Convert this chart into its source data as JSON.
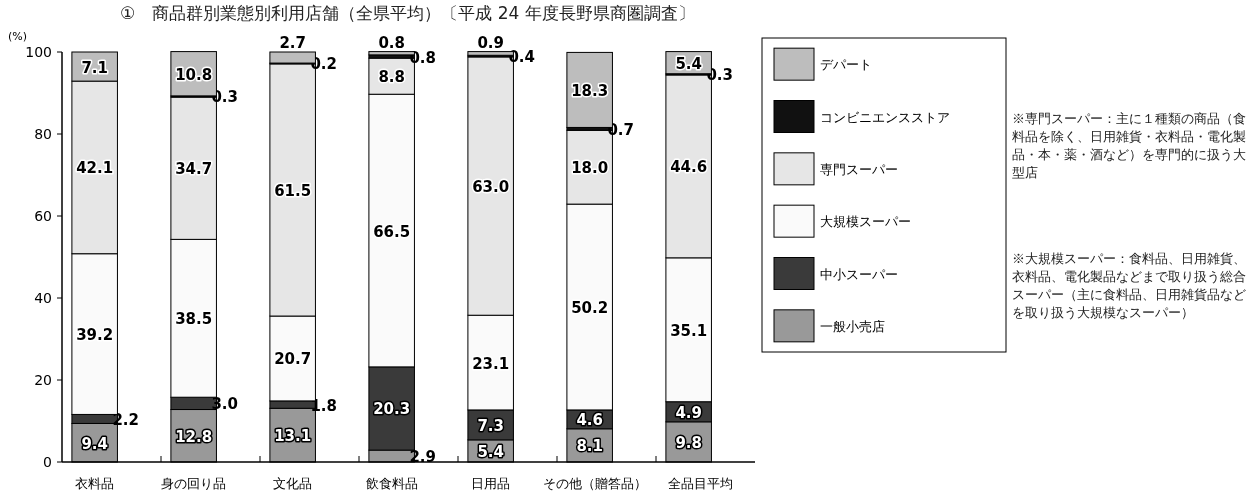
{
  "chart_data": {
    "type": "bar",
    "stacked": true,
    "title": "①　商品群別業態別利用店舗（全県平均）〔平成 24 年度長野県商圏調査〕",
    "ylabel": "(%)",
    "categories": [
      "衣料品",
      "身の回り品",
      "文化品",
      "飲食料品",
      "日用品",
      "その他（贈答品）",
      "全品目平均"
    ],
    "ylim": [
      0,
      100
    ],
    "yticks": [
      0,
      20,
      40,
      60,
      80,
      100
    ],
    "legend": "right",
    "grid": false,
    "series": [
      {
        "name": "一般小売店",
        "color": "#999999",
        "values": [
          9.4,
          12.8,
          13.1,
          2.9,
          5.4,
          8.1,
          9.8
        ],
        "value_labels": [
          "9.4",
          "12.8",
          "13.1",
          "2.9",
          "5.4",
          "8.1",
          "9.8"
        ]
      },
      {
        "name": "中小スーパー",
        "color": "#3a3a3a",
        "values": [
          2.2,
          3.0,
          1.8,
          20.3,
          7.3,
          4.6,
          4.9
        ],
        "value_labels": [
          "2.2",
          "3.0",
          "1.8",
          "20.3",
          "7.3",
          "4.6",
          "4.9"
        ]
      },
      {
        "name": "大規模スーパー",
        "color": "#fafafa",
        "values": [
          39.2,
          38.5,
          20.7,
          66.5,
          23.1,
          50.2,
          35.1
        ],
        "value_labels": [
          "39.2",
          "38.5",
          "20.7",
          "66.5",
          "23.1",
          "50.2",
          "35.1"
        ]
      },
      {
        "name": "専門スーパー",
        "color": "#e6e6e6",
        "values": [
          42.1,
          34.7,
          61.5,
          8.8,
          63.0,
          18.0,
          44.6
        ],
        "value_labels": [
          "42.1",
          "34.7",
          "61.5",
          "8.8",
          "63.0",
          "18.0",
          "44.6"
        ]
      },
      {
        "name": "コンビニエンスストア",
        "color": "#111111",
        "values": [
          0,
          0.3,
          0.2,
          0.8,
          0.4,
          0.7,
          0.3
        ],
        "value_labels": [
          null,
          "0.3",
          "0.2",
          "0.8",
          "0.4",
          "0.7",
          "0.3"
        ]
      },
      {
        "name": "デパート",
        "color": "#bdbdbd",
        "values": [
          7.1,
          10.8,
          2.7,
          0.8,
          0.9,
          18.3,
          5.4
        ],
        "value_labels": [
          "7.1",
          "10.8",
          "2.7",
          "0.8",
          "0.9",
          "18.3",
          "5.4"
        ]
      }
    ],
    "annotations": [
      "※専門スーパー：主に１種類の商品（食料品を除く、日用雑貨・衣料品・電化製品・本・薬・酒など）を専門的に扱う大型店",
      "※大規模スーパー：食料品、日用雑貨、衣料品、電化製品などまで取り扱う総合スーパー（主に食料品、日用雑貨品などを取り扱う大規模なスーパー）"
    ]
  }
}
